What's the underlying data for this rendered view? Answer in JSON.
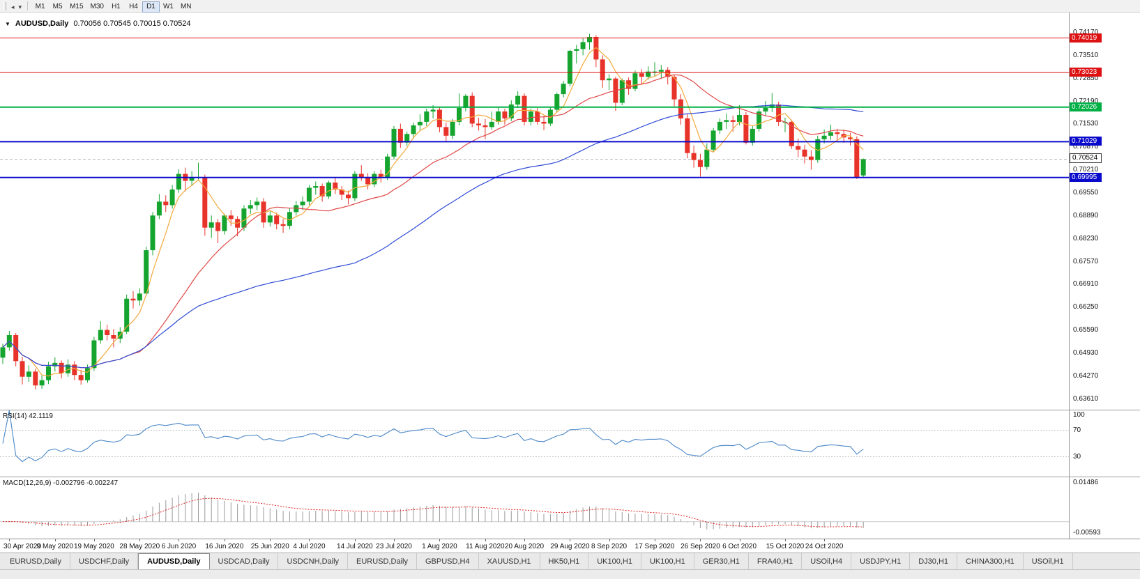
{
  "toolbar": {
    "left_icons": [
      {
        "name": "scroll-mode-icon",
        "glyph": "◂"
      },
      {
        "name": "charts-dropdown-icon",
        "glyph": "▾"
      }
    ],
    "timeframes": [
      "M1",
      "M5",
      "M15",
      "M30",
      "H1",
      "H4",
      "D1",
      "W1",
      "MN"
    ],
    "active_timeframe": "D1"
  },
  "chart": {
    "dropdown_glyph": "▼",
    "title": "AUDUSD,Daily",
    "ohlc": "0.70056 0.70545 0.70015 0.70524",
    "price_axis": [
      "0.74170",
      "0.73510",
      "0.72850",
      "0.72190",
      "0.71530",
      "0.70870",
      "0.70210",
      "0.69550",
      "0.68890",
      "0.68230",
      "0.67570",
      "0.66910",
      "0.66250",
      "0.65590",
      "0.64930",
      "0.64270",
      "0.63610"
    ],
    "levels": [
      {
        "price": 0.74019,
        "label": "0.74019",
        "color": "#dd1111",
        "width": 1
      },
      {
        "price": 0.73023,
        "label": "0.73023",
        "color": "#dd1111",
        "width": 1
      },
      {
        "price": 0.72026,
        "label": "0.72026",
        "color": "#00b044",
        "width": 2
      },
      {
        "price": 0.71029,
        "label": "0.71029",
        "color": "#0a0acc",
        "width": 2
      },
      {
        "price": 0.69995,
        "label": "0.69995",
        "color": "#0a0acc",
        "width": 2
      }
    ],
    "current_price": {
      "value": 0.70524,
      "label": "0.70524"
    }
  },
  "rsi": {
    "label": "RSI(14) 42.1119",
    "period": 14,
    "color": "#4a87c7",
    "axis": [
      "100",
      "70",
      "30"
    ],
    "guide_levels": [
      70,
      30
    ]
  },
  "macd": {
    "label": "MACD(12,26,9) -0.002796 -0.002247",
    "fast": 12,
    "slow": 26,
    "signal": 9,
    "axis_top": "0.01486",
    "axis_bottom": "-0.00593",
    "bar_color": "#9a9a9a",
    "signal_color": "#e01f1f"
  },
  "date_axis": [
    {
      "i": 1,
      "label": "30 Apr 2020"
    },
    {
      "i": 8,
      "label": "9 May 2020"
    },
    {
      "i": 14,
      "label": "19 May 2020"
    },
    {
      "i": 21,
      "label": "28 May 2020"
    },
    {
      "i": 27,
      "label": "6 Jun 2020"
    },
    {
      "i": 34,
      "label": "16 Jun 2020"
    },
    {
      "i": 41,
      "label": "25 Jun 2020"
    },
    {
      "i": 47,
      "label": "4 Jul 2020"
    },
    {
      "i": 54,
      "label": "14 Jul 2020"
    },
    {
      "i": 60,
      "label": "23 Jul 2020"
    },
    {
      "i": 67,
      "label": "1 Aug 2020"
    },
    {
      "i": 74,
      "label": "11 Aug 2020"
    },
    {
      "i": 80,
      "label": "20 Aug 2020"
    },
    {
      "i": 87,
      "label": "29 Aug 2020"
    },
    {
      "i": 93,
      "label": "8 Sep 2020"
    },
    {
      "i": 100,
      "label": "17 Sep 2020"
    },
    {
      "i": 107,
      "label": "26 Sep 2020"
    },
    {
      "i": 113,
      "label": "6 Oct 2020"
    },
    {
      "i": 120,
      "label": "15 Oct 2020"
    },
    {
      "i": 126,
      "label": "24 Oct 2020"
    }
  ],
  "tabs": [
    {
      "label": "EURUSD,Daily",
      "active": false
    },
    {
      "label": "USDCHF,Daily",
      "active": false
    },
    {
      "label": "AUDUSD,Daily",
      "active": true
    },
    {
      "label": "USDCAD,Daily",
      "active": false
    },
    {
      "label": "USDCNH,Daily",
      "active": false
    },
    {
      "label": "EURUSD,Daily",
      "active": false
    },
    {
      "label": "GBPUSD,H4",
      "active": false
    },
    {
      "label": "XAUUSD,H1",
      "active": false
    },
    {
      "label": "HK50,H1",
      "active": false
    },
    {
      "label": "UK100,H1",
      "active": false
    },
    {
      "label": "UK100,H1",
      "active": false
    },
    {
      "label": "GER30,H1",
      "active": false
    },
    {
      "label": "FRA40,H1",
      "active": false
    },
    {
      "label": "USOil,H4",
      "active": false
    },
    {
      "label": "USDJPY,H1",
      "active": false
    },
    {
      "label": "DJ30,H1",
      "active": false
    },
    {
      "label": "CHINA300,H1",
      "active": false
    },
    {
      "label": "USOil,H1",
      "active": false
    }
  ],
  "chart_data": {
    "type": "candlestick",
    "symbol": "AUDUSD",
    "timeframe": "Daily",
    "colors": {
      "up": "#15a52f",
      "down": "#e8332a"
    },
    "moving_averages": [
      {
        "period": 5,
        "color": "#f2a93b"
      },
      {
        "period": 20,
        "color": "#e04848"
      },
      {
        "period": 55,
        "color": "#2f4bd6"
      }
    ],
    "candles": [
      [
        0.648,
        0.652,
        0.6462,
        0.651
      ],
      [
        0.651,
        0.6557,
        0.65,
        0.6545
      ],
      [
        0.6545,
        0.6551,
        0.6455,
        0.647
      ],
      [
        0.647,
        0.6482,
        0.6403,
        0.6425
      ],
      [
        0.6425,
        0.6458,
        0.641,
        0.644
      ],
      [
        0.644,
        0.6448,
        0.6388,
        0.64
      ],
      [
        0.64,
        0.6428,
        0.639,
        0.6415
      ],
      [
        0.6415,
        0.6468,
        0.6404,
        0.6455
      ],
      [
        0.6455,
        0.6481,
        0.644,
        0.6465
      ],
      [
        0.6465,
        0.6472,
        0.642,
        0.6435
      ],
      [
        0.6435,
        0.6475,
        0.6425,
        0.646
      ],
      [
        0.646,
        0.647,
        0.6415,
        0.643
      ],
      [
        0.643,
        0.6445,
        0.6402,
        0.6415
      ],
      [
        0.6415,
        0.646,
        0.6408,
        0.645
      ],
      [
        0.645,
        0.654,
        0.6442,
        0.653
      ],
      [
        0.653,
        0.6585,
        0.652,
        0.656
      ],
      [
        0.656,
        0.6575,
        0.653,
        0.6545
      ],
      [
        0.6545,
        0.6562,
        0.651,
        0.6535
      ],
      [
        0.6535,
        0.6568,
        0.6522,
        0.6555
      ],
      [
        0.6555,
        0.6662,
        0.6548,
        0.665
      ],
      [
        0.665,
        0.6672,
        0.6622,
        0.6645
      ],
      [
        0.6645,
        0.668,
        0.663,
        0.6665
      ],
      [
        0.6665,
        0.68,
        0.666,
        0.679
      ],
      [
        0.679,
        0.69,
        0.6775,
        0.689
      ],
      [
        0.689,
        0.6952,
        0.688,
        0.693
      ],
      [
        0.693,
        0.6948,
        0.69,
        0.692
      ],
      [
        0.692,
        0.6978,
        0.691,
        0.6965
      ],
      [
        0.6965,
        0.7023,
        0.6955,
        0.701
      ],
      [
        0.701,
        0.7028,
        0.696,
        0.699
      ],
      [
        0.699,
        0.7018,
        0.6975,
        0.7
      ],
      [
        0.7,
        0.7042,
        0.699,
        0.7
      ],
      [
        0.7,
        0.7008,
        0.6832,
        0.6855
      ],
      [
        0.6855,
        0.689,
        0.6825,
        0.687
      ],
      [
        0.687,
        0.688,
        0.681,
        0.6845
      ],
      [
        0.6845,
        0.6895,
        0.6835,
        0.689
      ],
      [
        0.689,
        0.6905,
        0.686,
        0.688
      ],
      [
        0.688,
        0.6888,
        0.683,
        0.6855
      ],
      [
        0.6855,
        0.692,
        0.6845,
        0.691
      ],
      [
        0.691,
        0.6935,
        0.6895,
        0.692
      ],
      [
        0.692,
        0.6942,
        0.6905,
        0.693
      ],
      [
        0.693,
        0.694,
        0.6855,
        0.687
      ],
      [
        0.687,
        0.6902,
        0.6858,
        0.689
      ],
      [
        0.689,
        0.6898,
        0.685,
        0.6865
      ],
      [
        0.6865,
        0.688,
        0.684,
        0.686
      ],
      [
        0.686,
        0.6912,
        0.685,
        0.69
      ],
      [
        0.69,
        0.6932,
        0.689,
        0.692
      ],
      [
        0.692,
        0.6945,
        0.6905,
        0.693
      ],
      [
        0.693,
        0.6978,
        0.692,
        0.697
      ],
      [
        0.697,
        0.6988,
        0.695,
        0.6975
      ],
      [
        0.6975,
        0.6982,
        0.693,
        0.6945
      ],
      [
        0.6945,
        0.699,
        0.6938,
        0.6985
      ],
      [
        0.6985,
        0.6998,
        0.6952,
        0.6965
      ],
      [
        0.6965,
        0.6975,
        0.6935,
        0.695
      ],
      [
        0.695,
        0.6962,
        0.6922,
        0.694
      ],
      [
        0.694,
        0.7018,
        0.6932,
        0.701
      ],
      [
        0.701,
        0.7035,
        0.699,
        0.7
      ],
      [
        0.7,
        0.7012,
        0.6965,
        0.698
      ],
      [
        0.698,
        0.7018,
        0.6972,
        0.701
      ],
      [
        0.701,
        0.7022,
        0.6985,
        0.7
      ],
      [
        0.7,
        0.7068,
        0.6992,
        0.706
      ],
      [
        0.706,
        0.7148,
        0.7052,
        0.714
      ],
      [
        0.714,
        0.7155,
        0.7085,
        0.71
      ],
      [
        0.71,
        0.7132,
        0.709,
        0.7125
      ],
      [
        0.7125,
        0.7158,
        0.7112,
        0.715
      ],
      [
        0.715,
        0.7182,
        0.7135,
        0.716
      ],
      [
        0.716,
        0.7198,
        0.7148,
        0.719
      ],
      [
        0.719,
        0.7208,
        0.717,
        0.7195
      ],
      [
        0.7195,
        0.7202,
        0.713,
        0.7145
      ],
      [
        0.7145,
        0.7158,
        0.7102,
        0.712
      ],
      [
        0.712,
        0.7168,
        0.711,
        0.716
      ],
      [
        0.716,
        0.7242,
        0.715,
        0.72
      ],
      [
        0.72,
        0.724,
        0.719,
        0.7235
      ],
      [
        0.7235,
        0.7245,
        0.7145,
        0.7155
      ],
      [
        0.7155,
        0.7172,
        0.7135,
        0.715
      ],
      [
        0.715,
        0.7168,
        0.711,
        0.7145
      ],
      [
        0.7145,
        0.719,
        0.7138,
        0.716
      ],
      [
        0.716,
        0.7202,
        0.7152,
        0.719
      ],
      [
        0.719,
        0.7198,
        0.7152,
        0.717
      ],
      [
        0.717,
        0.7222,
        0.7162,
        0.721
      ],
      [
        0.721,
        0.7248,
        0.72,
        0.7235
      ],
      [
        0.7235,
        0.7242,
        0.715,
        0.716
      ],
      [
        0.716,
        0.7198,
        0.715,
        0.719
      ],
      [
        0.719,
        0.72,
        0.7152,
        0.716
      ],
      [
        0.716,
        0.7178,
        0.7136,
        0.7155
      ],
      [
        0.7155,
        0.7202,
        0.7148,
        0.7195
      ],
      [
        0.7195,
        0.7245,
        0.7188,
        0.724
      ],
      [
        0.724,
        0.7278,
        0.723,
        0.727
      ],
      [
        0.727,
        0.7368,
        0.7262,
        0.7365
      ],
      [
        0.7365,
        0.7382,
        0.7328,
        0.737
      ],
      [
        0.737,
        0.7402,
        0.7352,
        0.739
      ],
      [
        0.739,
        0.7414,
        0.7368,
        0.7405
      ],
      [
        0.7405,
        0.741,
        0.7318,
        0.734
      ],
      [
        0.734,
        0.7352,
        0.7258,
        0.728
      ],
      [
        0.728,
        0.7298,
        0.7252,
        0.7285
      ],
      [
        0.7285,
        0.729,
        0.7192,
        0.7215
      ],
      [
        0.7215,
        0.7285,
        0.7208,
        0.728
      ],
      [
        0.728,
        0.7288,
        0.7238,
        0.7255
      ],
      [
        0.7255,
        0.7308,
        0.7248,
        0.73
      ],
      [
        0.73,
        0.7312,
        0.727,
        0.729
      ],
      [
        0.729,
        0.732,
        0.7282,
        0.7305
      ],
      [
        0.7305,
        0.7332,
        0.7292,
        0.7305
      ],
      [
        0.7305,
        0.7324,
        0.7285,
        0.731
      ],
      [
        0.731,
        0.7318,
        0.7268,
        0.729
      ],
      [
        0.729,
        0.7296,
        0.7205,
        0.7225
      ],
      [
        0.7225,
        0.724,
        0.7152,
        0.717
      ],
      [
        0.717,
        0.7182,
        0.7055,
        0.707
      ],
      [
        0.707,
        0.7092,
        0.7028,
        0.705
      ],
      [
        0.705,
        0.7068,
        0.7002,
        0.703
      ],
      [
        0.703,
        0.7098,
        0.7022,
        0.708
      ],
      [
        0.708,
        0.7142,
        0.7072,
        0.7135
      ],
      [
        0.7135,
        0.717,
        0.7125,
        0.716
      ],
      [
        0.716,
        0.7184,
        0.714,
        0.7165
      ],
      [
        0.7165,
        0.7178,
        0.7132,
        0.716
      ],
      [
        0.716,
        0.7208,
        0.715,
        0.718
      ],
      [
        0.718,
        0.7188,
        0.7095,
        0.71
      ],
      [
        0.71,
        0.7148,
        0.7092,
        0.714
      ],
      [
        0.714,
        0.7198,
        0.7132,
        0.719
      ],
      [
        0.719,
        0.722,
        0.7178,
        0.72
      ],
      [
        0.72,
        0.7243,
        0.7188,
        0.721
      ],
      [
        0.721,
        0.7218,
        0.7148,
        0.716
      ],
      [
        0.716,
        0.7172,
        0.713,
        0.716
      ],
      [
        0.716,
        0.7166,
        0.7082,
        0.709
      ],
      [
        0.709,
        0.7112,
        0.7058,
        0.708
      ],
      [
        0.708,
        0.7094,
        0.704,
        0.706
      ],
      [
        0.706,
        0.7078,
        0.7022,
        0.705
      ],
      [
        0.705,
        0.712,
        0.7042,
        0.711
      ],
      [
        0.711,
        0.7138,
        0.7098,
        0.712
      ],
      [
        0.712,
        0.7152,
        0.7108,
        0.713
      ],
      [
        0.713,
        0.714,
        0.7102,
        0.7125
      ],
      [
        0.7125,
        0.7138,
        0.71,
        0.7115
      ],
      [
        0.7115,
        0.7128,
        0.7092,
        0.711
      ],
      [
        0.711,
        0.7118,
        0.6995,
        0.6999
      ],
      [
        0.70056,
        0.70545,
        0.70015,
        0.70524
      ]
    ]
  }
}
